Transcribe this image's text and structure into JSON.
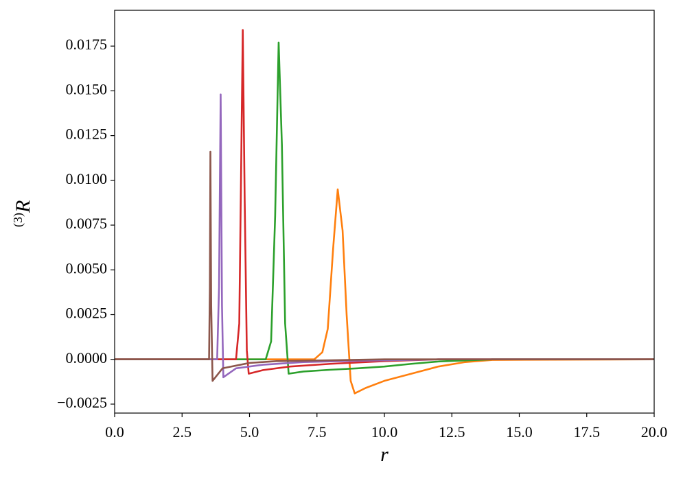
{
  "chart_data": {
    "type": "line",
    "xlabel": "r",
    "ylabel_sup": "(3)",
    "ylabel": "R",
    "xlim": [
      0,
      20
    ],
    "xticks": [
      {
        "value": 0,
        "label": "0.0"
      },
      2.5,
      {
        "value": 5,
        "label": "5.0"
      },
      7.5,
      {
        "value": 10,
        "label": "10.0"
      },
      12.5,
      {
        "value": 15,
        "label": "15.0"
      },
      17.5,
      {
        "value": 20,
        "label": "20.0"
      }
    ],
    "ylim": [
      -0.003,
      0.0195
    ],
    "yticks": [
      {
        "value": -0.0025,
        "label": "−0.0025"
      },
      {
        "value": 0,
        "label": "0.0000"
      },
      0.0025,
      {
        "value": 0.005,
        "label": "0.0050"
      },
      0.0075,
      {
        "value": 0.01,
        "label": "0.0100"
      },
      0.0125,
      {
        "value": 0.015,
        "label": "0.0150"
      },
      0.0175
    ],
    "grid": false,
    "series": [
      {
        "color": "#ff7f0e",
        "x": [
          0,
          7.4,
          7.7,
          7.9,
          8.1,
          8.27,
          8.45,
          8.6,
          8.75,
          8.9,
          9.3,
          10,
          11,
          12,
          13,
          14,
          20
        ],
        "values": [
          0,
          0,
          0.0004,
          0.0017,
          0.0062,
          0.0095,
          0.0072,
          0.0025,
          -0.0012,
          -0.0019,
          -0.0016,
          -0.0012,
          -0.0008,
          -0.0004,
          -0.00015,
          -3e-05,
          0
        ]
      },
      {
        "color": "#2ca02c",
        "x": [
          0,
          5.6,
          5.8,
          5.95,
          6.08,
          6.2,
          6.32,
          6.45,
          7,
          8,
          9,
          10,
          11,
          12,
          14,
          20
        ],
        "values": [
          0,
          0,
          0.001,
          0.008,
          0.0177,
          0.012,
          0.002,
          -0.0008,
          -0.00068,
          -0.00058,
          -0.0005,
          -0.0004,
          -0.00025,
          -0.00012,
          0,
          0
        ]
      },
      {
        "color": "#d62728",
        "x": [
          0,
          4.5,
          4.62,
          4.7,
          4.75,
          4.82,
          4.9,
          4.97,
          5.5,
          6.5,
          8,
          10,
          12,
          20
        ],
        "values": [
          0,
          0,
          0.002,
          0.012,
          0.0184,
          0.009,
          0.0005,
          -0.0008,
          -0.0006,
          -0.0004,
          -0.00025,
          -0.0001,
          0,
          0
        ]
      },
      {
        "color": "#9467bd",
        "x": [
          0,
          3.8,
          3.87,
          3.93,
          3.98,
          4.03,
          4.5,
          5.5,
          7,
          9,
          12,
          20
        ],
        "values": [
          0,
          0,
          0.004,
          0.0148,
          0.003,
          -0.001,
          -0.0005,
          -0.0003,
          -0.00015,
          -8e-05,
          0,
          0
        ]
      },
      {
        "color": "#8c564b",
        "x": [
          0,
          3.5,
          3.53,
          3.55,
          3.58,
          3.63,
          4,
          5,
          6,
          8,
          10,
          20
        ],
        "values": [
          0,
          0,
          0.004,
          0.0116,
          0.003,
          -0.0012,
          -0.0005,
          -0.0002,
          -0.0001,
          -5e-05,
          0,
          0
        ]
      }
    ]
  }
}
